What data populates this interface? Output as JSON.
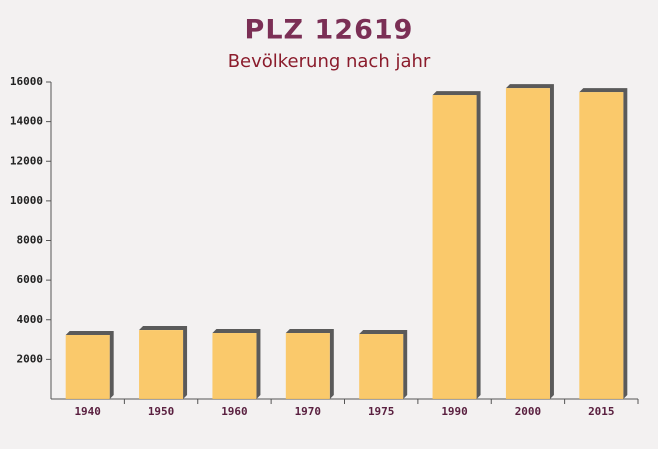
{
  "chart_data": {
    "type": "bar",
    "title": "PLZ 12619",
    "subtitle": "Bevölkerung nach jahr",
    "categories": [
      "1940",
      "1950",
      "1960",
      "1970",
      "1975",
      "1990",
      "2000",
      "2015"
    ],
    "values": [
      3230,
      3480,
      3330,
      3330,
      3280,
      15340,
      15690,
      15490
    ],
    "color": "#fbc45c",
    "ylim": [
      0,
      16000
    ],
    "yticks": [
      2000,
      4000,
      6000,
      8000,
      10000,
      12000,
      14000,
      16000
    ]
  }
}
